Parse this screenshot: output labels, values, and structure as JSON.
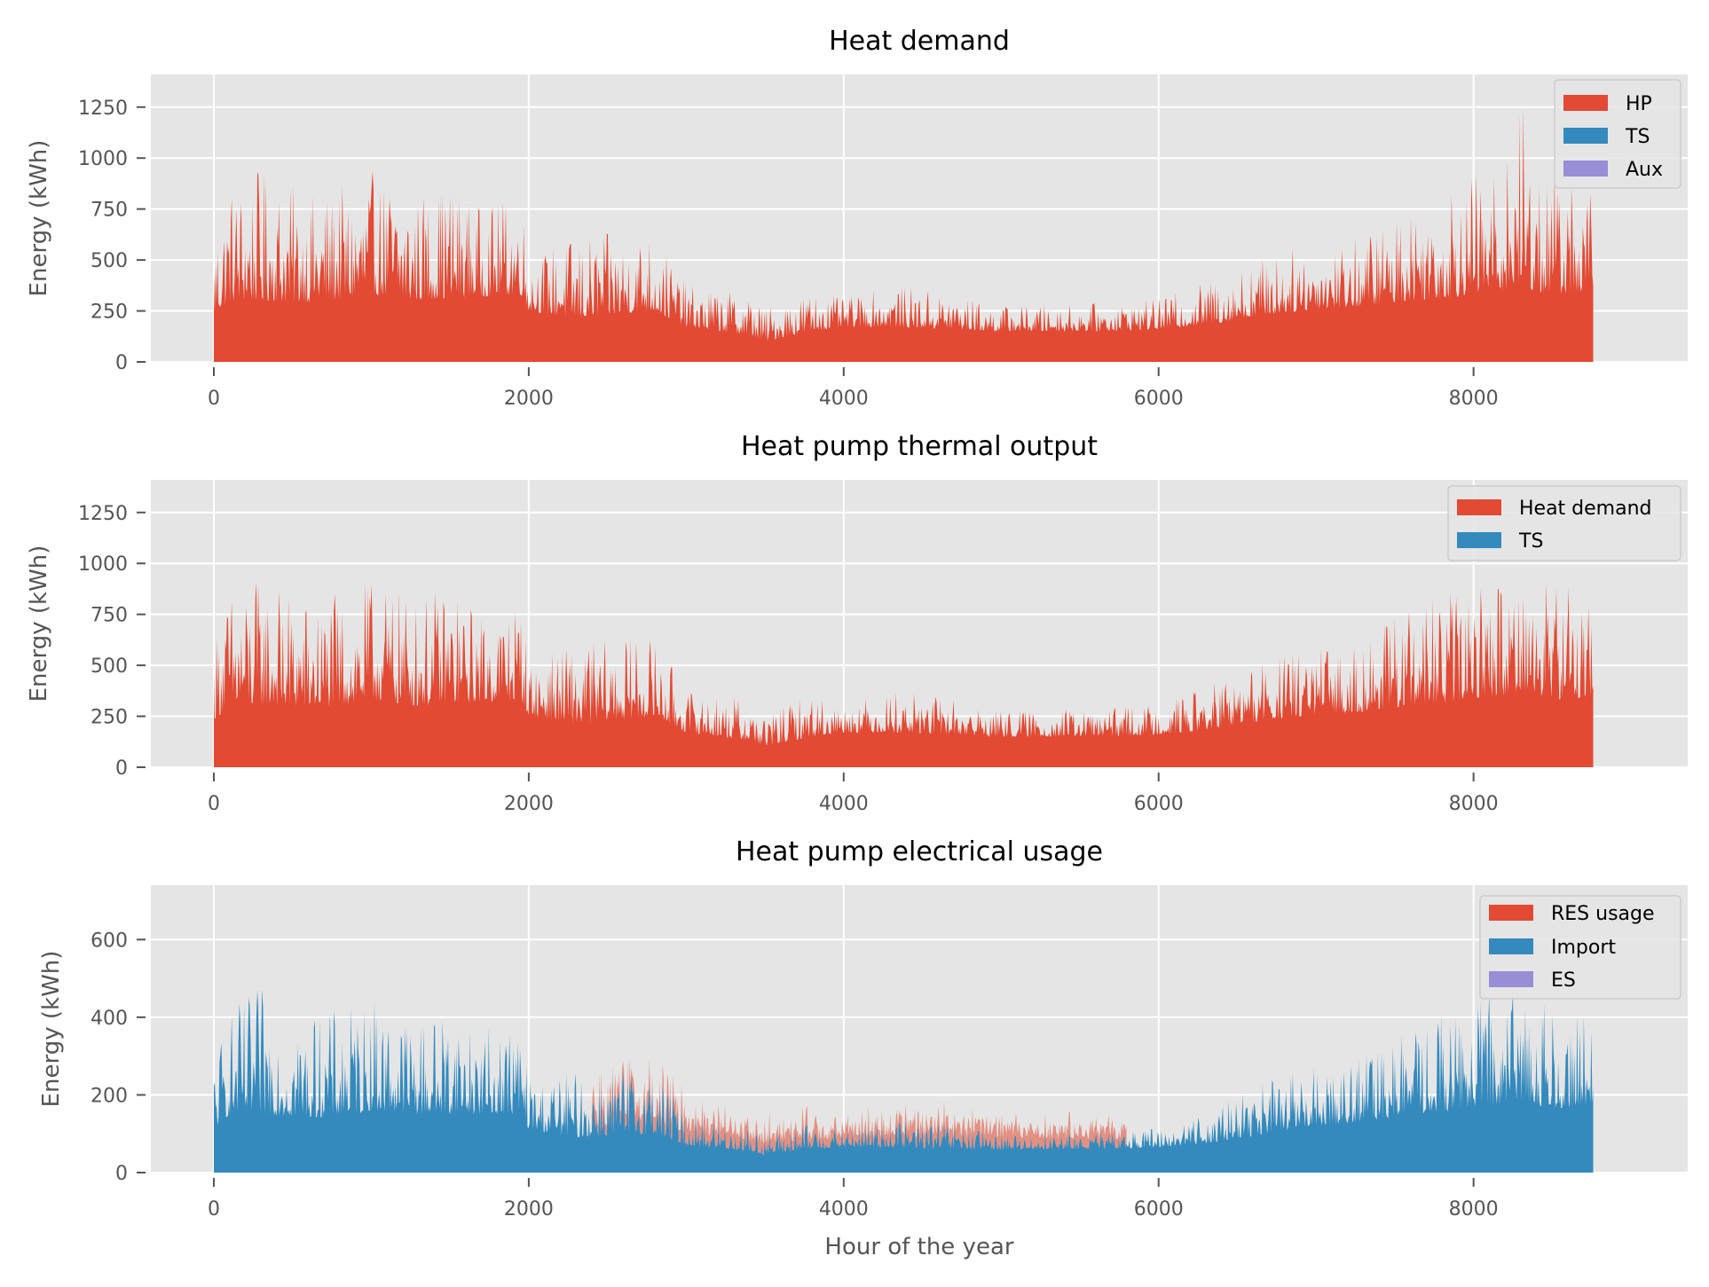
{
  "figure": {
    "xlabel": "Hour of the year"
  },
  "colors": {
    "red": "#e24a33",
    "blue": "#348abd",
    "purple": "#988ed5",
    "panel_bg": "#e5e5e5",
    "grid": "#ffffff"
  },
  "chart_data": [
    {
      "type": "area",
      "title": "Heat demand",
      "ylabel": "Energy (kWh)",
      "xlabel": "",
      "xlim": [
        -400,
        9360
      ],
      "ylim": [
        0,
        1410
      ],
      "xticks": [
        0,
        2000,
        4000,
        6000,
        8000
      ],
      "yticks": [
        0,
        250,
        500,
        750,
        1000,
        1250
      ],
      "grid": true,
      "legend_position": "top-right",
      "legend": [
        "HP",
        "TS",
        "Aux"
      ],
      "series": [
        {
          "name": "HP",
          "color": "red",
          "stacked_under": "",
          "hour_range": [
            0,
            8760
          ],
          "envelope_hours": [
            0,
            100,
            300,
            600,
            900,
            1000,
            1300,
            1500,
            1700,
            1950,
            2000,
            2300,
            2800,
            3000,
            3400,
            3500,
            3800,
            4000,
            4300,
            4700,
            4950,
            5200,
            5600,
            6000,
            6300,
            6700,
            7000,
            7300,
            7600,
            7900,
            8000,
            8200,
            8300,
            8400,
            8600,
            8760
          ],
          "envelope_base": [
            230,
            300,
            300,
            290,
            310,
            330,
            300,
            310,
            320,
            330,
            250,
            210,
            250,
            170,
            130,
            100,
            150,
            170,
            170,
            160,
            150,
            150,
            150,
            160,
            180,
            230,
            260,
            270,
            300,
            320,
            340,
            350,
            380,
            340,
            330,
            350
          ],
          "envelope_peak": [
            650,
            880,
            950,
            830,
            870,
            940,
            840,
            900,
            750,
            850,
            520,
            620,
            640,
            380,
            340,
            270,
            360,
            310,
            380,
            340,
            280,
            280,
            290,
            310,
            400,
            540,
            580,
            630,
            790,
            880,
            930,
            970,
            1330,
            980,
            940,
            900
          ]
        },
        {
          "name": "TS",
          "color": "blue",
          "stacked_under": "",
          "values": []
        },
        {
          "name": "Aux",
          "color": "purple",
          "stacked_under": "",
          "values": []
        }
      ]
    },
    {
      "type": "area",
      "title": "Heat pump thermal output",
      "ylabel": "Energy (kWh)",
      "xlabel": "",
      "xlim": [
        -400,
        9360
      ],
      "ylim": [
        0,
        1410
      ],
      "xticks": [
        0,
        2000,
        4000,
        6000,
        8000
      ],
      "yticks": [
        0,
        250,
        500,
        750,
        1000,
        1250
      ],
      "grid": true,
      "legend_position": "top-right",
      "legend": [
        "Heat demand",
        "TS"
      ],
      "series": [
        {
          "name": "Heat demand",
          "color": "red",
          "stacked_under": "",
          "hour_range": [
            0,
            8760
          ],
          "envelope_hours": [
            0,
            100,
            300,
            600,
            900,
            1000,
            1300,
            1500,
            1700,
            1950,
            2000,
            2300,
            2800,
            3000,
            3400,
            3500,
            3800,
            4000,
            4300,
            4700,
            4950,
            5200,
            5600,
            6000,
            6300,
            6700,
            7000,
            7300,
            7600,
            7900,
            8000,
            8200,
            8300,
            8400,
            8600,
            8760
          ],
          "envelope_base": [
            230,
            300,
            300,
            290,
            310,
            330,
            300,
            310,
            320,
            330,
            250,
            210,
            250,
            170,
            130,
            100,
            150,
            170,
            170,
            160,
            150,
            150,
            150,
            160,
            180,
            230,
            260,
            270,
            300,
            320,
            340,
            350,
            380,
            340,
            330,
            350
          ],
          "envelope_peak": [
            650,
            880,
            950,
            830,
            870,
            940,
            840,
            900,
            750,
            850,
            520,
            620,
            640,
            380,
            340,
            270,
            360,
            310,
            380,
            340,
            280,
            280,
            290,
            310,
            400,
            540,
            580,
            630,
            790,
            880,
            930,
            970,
            1010,
            980,
            940,
            900
          ]
        },
        {
          "name": "TS",
          "color": "blue",
          "stacked_under": "",
          "values": []
        }
      ]
    },
    {
      "type": "area",
      "title": "Heat pump electrical usage",
      "ylabel": "Energy (kWh)",
      "xlabel": "Hour of the year",
      "xlim": [
        -400,
        9360
      ],
      "ylim": [
        0,
        740
      ],
      "xticks": [
        0,
        2000,
        4000,
        6000,
        8000
      ],
      "yticks": [
        0,
        200,
        400,
        600
      ],
      "grid": true,
      "legend_position": "top-right",
      "legend": [
        "RES usage",
        "Import",
        "ES"
      ],
      "series": [
        {
          "name": "Import",
          "color": "blue",
          "stacked_under": "",
          "hour_range": [
            0,
            8760
          ],
          "envelope_hours": [
            0,
            100,
            300,
            600,
            900,
            1000,
            1300,
            1500,
            1700,
            1950,
            2000,
            2300,
            2800,
            3000,
            3400,
            3500,
            3800,
            4000,
            4300,
            4700,
            4950,
            5200,
            5600,
            6000,
            6300,
            6700,
            7000,
            7300,
            7600,
            7900,
            8000,
            8200,
            8300,
            8400,
            8600,
            8760
          ],
          "envelope_base": [
            110,
            150,
            150,
            140,
            150,
            160,
            150,
            150,
            150,
            150,
            110,
            90,
            100,
            70,
            55,
            45,
            60,
            65,
            65,
            60,
            60,
            60,
            60,
            65,
            75,
            100,
            120,
            130,
            150,
            160,
            170,
            175,
            190,
            170,
            165,
            175
          ],
          "envelope_peak": [
            300,
            420,
            480,
            400,
            440,
            460,
            400,
            440,
            370,
            390,
            250,
            260,
            280,
            150,
            120,
            100,
            130,
            110,
            140,
            130,
            100,
            100,
            105,
            115,
            160,
            240,
            270,
            300,
            380,
            420,
            460,
            470,
            500,
            460,
            440,
            440
          ]
        },
        {
          "name": "RES usage",
          "color": "red",
          "stacked_under": "Import",
          "hour_range": [
            2400,
            5800
          ],
          "envelope_hours": [
            2400,
            3000,
            3500,
            4000,
            4500,
            5000,
            5500,
            5800
          ],
          "envelope_base": [
            20,
            30,
            25,
            20,
            25,
            30,
            25,
            20
          ],
          "envelope_peak": [
            60,
            70,
            60,
            50,
            60,
            70,
            60,
            50
          ]
        },
        {
          "name": "ES",
          "color": "purple",
          "stacked_under": "",
          "values": []
        }
      ]
    }
  ]
}
